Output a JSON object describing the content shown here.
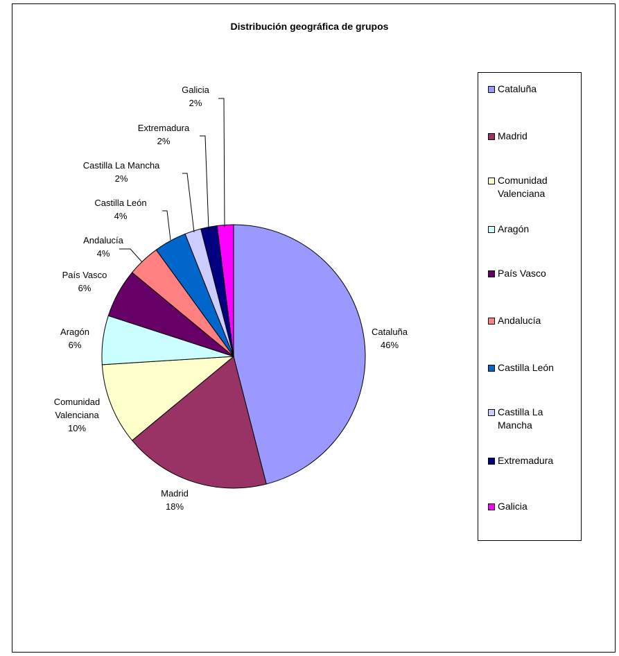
{
  "chart_data": {
    "type": "pie",
    "title": "Distribución geográfica de grupos",
    "legend_position": "right",
    "slices": [
      {
        "name": "Cataluña",
        "legend_label": "Cataluña",
        "label": "Cataluña",
        "value": 46,
        "pct_label": "46%",
        "color": "#9999FF"
      },
      {
        "name": "Madrid",
        "legend_label": "Madrid",
        "label": "Madrid",
        "value": 18,
        "pct_label": "18%",
        "color": "#993366"
      },
      {
        "name": "Comunidad Valenciana",
        "legend_label": "Comunidad\nValenciana",
        "label": "Comunidad\nValenciana",
        "value": 10,
        "pct_label": "10%",
        "color": "#FFFFCC"
      },
      {
        "name": "Aragón",
        "legend_label": "Aragón",
        "label": "Aragón",
        "value": 6,
        "pct_label": "6%",
        "color": "#CCFFFF"
      },
      {
        "name": "País Vasco",
        "legend_label": "País Vasco",
        "label": "País Vasco",
        "value": 6,
        "pct_label": "6%",
        "color": "#660066"
      },
      {
        "name": "Andalucía",
        "legend_label": "Andalucía",
        "label": "Andalucía",
        "value": 4,
        "pct_label": "4%",
        "color": "#FF8080"
      },
      {
        "name": "Castilla León",
        "legend_label": "Castilla León",
        "label": "Castilla León",
        "value": 4,
        "pct_label": "4%",
        "color": "#0066CC"
      },
      {
        "name": "Castilla La Mancha",
        "legend_label": "Castilla La\nMancha",
        "label": "Castilla La Mancha",
        "value": 2,
        "pct_label": "2%",
        "color": "#CCCCFF"
      },
      {
        "name": "Extremadura",
        "legend_label": "Extremadura",
        "label": "Extremadura",
        "value": 2,
        "pct_label": "2%",
        "color": "#000080"
      },
      {
        "name": "Galicia",
        "legend_label": "Galicia",
        "label": "Galicia",
        "value": 2,
        "pct_label": "2%",
        "color": "#FF00FF"
      }
    ]
  }
}
